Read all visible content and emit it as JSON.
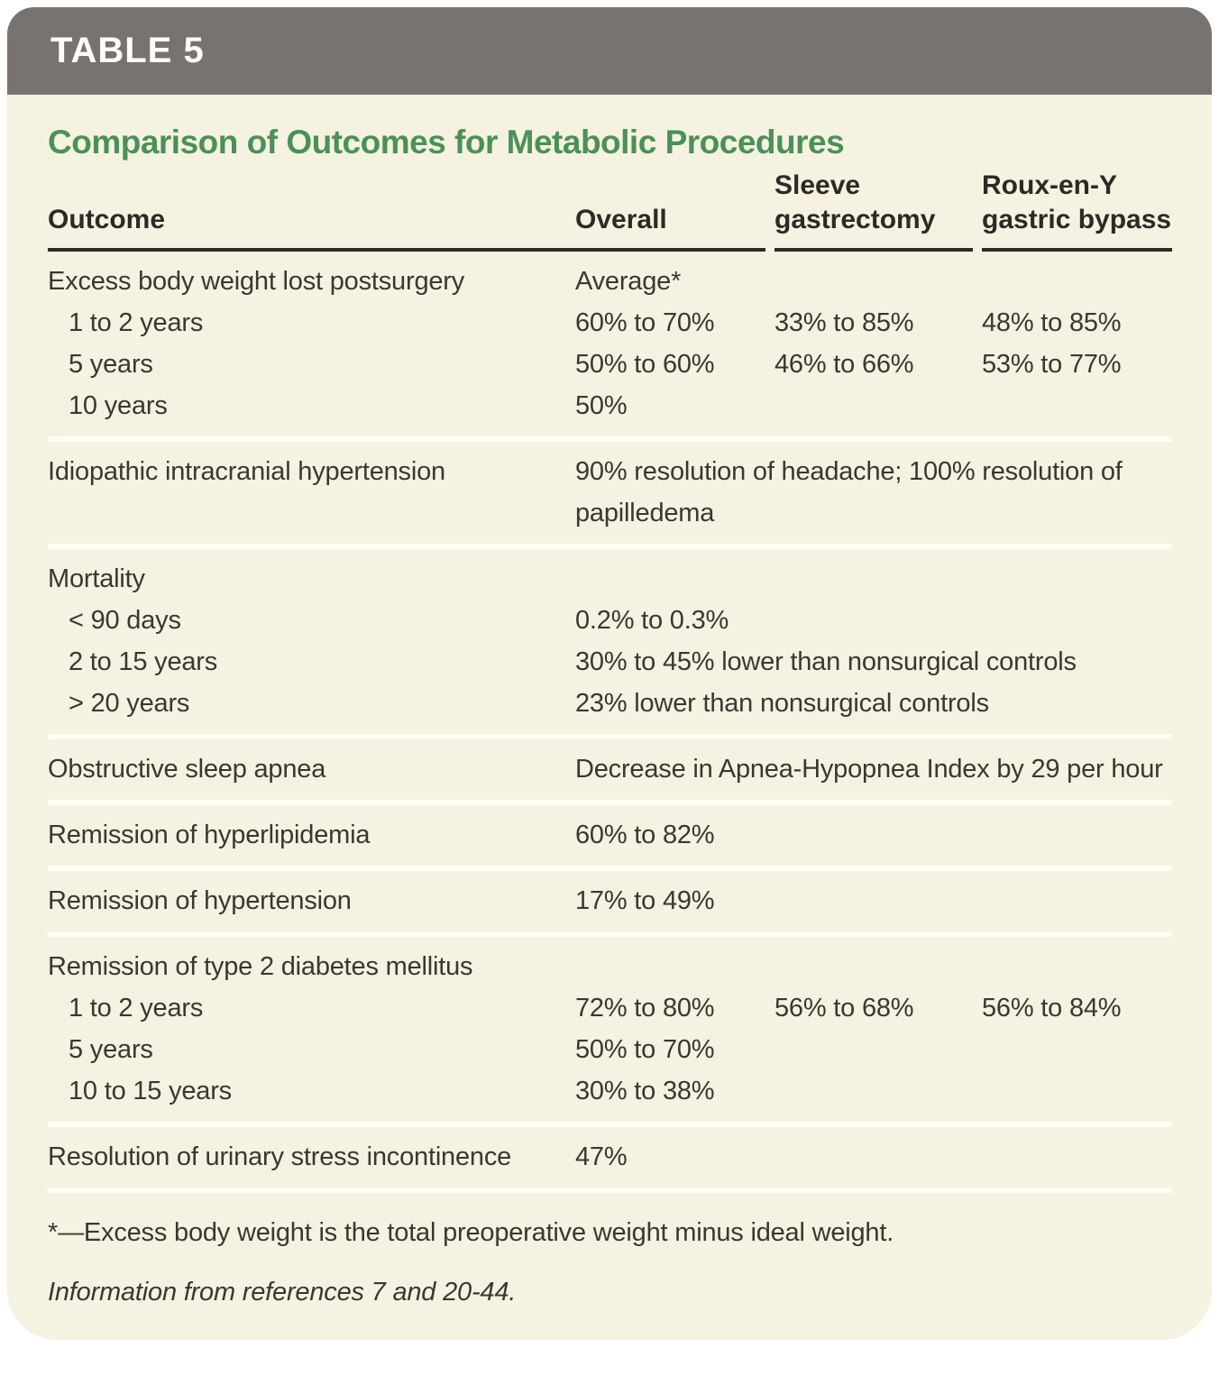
{
  "table": {
    "tag": "TABLE 5",
    "title": "Comparison of Outcomes for Metabolic Procedures",
    "columns": [
      "Outcome",
      "Overall",
      "Sleeve gastrectomy",
      "Roux-en-Y gastric bypass"
    ],
    "groups": [
      {
        "rows": [
          {
            "outcome": "Excess body weight lost postsurgery",
            "indent": false,
            "overall": "Average*",
            "sleeve": "",
            "roux": ""
          },
          {
            "outcome": "1 to 2 years",
            "indent": true,
            "overall": "60% to 70%",
            "sleeve": "33% to 85%",
            "roux": "48% to 85%"
          },
          {
            "outcome": "5 years",
            "indent": true,
            "overall": "50% to 60%",
            "sleeve": "46% to 66%",
            "roux": "53% to 77%"
          },
          {
            "outcome": "10 years",
            "indent": true,
            "overall": "50%",
            "sleeve": "",
            "roux": ""
          }
        ]
      },
      {
        "rows": [
          {
            "outcome": "Idiopathic intracranial hypertension",
            "indent": false,
            "overall": "90% resolution of headache; 100% resolution of papilledema",
            "span": true
          }
        ]
      },
      {
        "rows": [
          {
            "outcome": "Mortality",
            "indent": false,
            "overall": "",
            "sleeve": "",
            "roux": ""
          },
          {
            "outcome": "< 90 days",
            "indent": true,
            "overall": "0.2% to 0.3%",
            "span": true
          },
          {
            "outcome": "2 to 15 years",
            "indent": true,
            "overall": "30% to 45% lower than nonsurgical controls",
            "span": true
          },
          {
            "outcome": "> 20 years",
            "indent": true,
            "overall": "23% lower than nonsurgical controls",
            "span": true
          }
        ]
      },
      {
        "rows": [
          {
            "outcome": "Obstructive sleep apnea",
            "indent": false,
            "overall": "Decrease in Apnea-Hypopnea Index by 29 per hour",
            "span": true
          }
        ]
      },
      {
        "rows": [
          {
            "outcome": "Remission of hyperlipidemia",
            "indent": false,
            "overall": "60% to 82%",
            "sleeve": "",
            "roux": ""
          }
        ]
      },
      {
        "rows": [
          {
            "outcome": "Remission of hypertension",
            "indent": false,
            "overall": "17% to 49%",
            "sleeve": "",
            "roux": ""
          }
        ]
      },
      {
        "rows": [
          {
            "outcome": "Remission of type 2 diabetes mellitus",
            "indent": false,
            "overall": "",
            "sleeve": "",
            "roux": ""
          },
          {
            "outcome": "1 to 2 years",
            "indent": true,
            "overall": "72% to 80%",
            "sleeve": "56% to 68%",
            "roux": "56% to 84%"
          },
          {
            "outcome": "5 years",
            "indent": true,
            "overall": "50% to 70%",
            "sleeve": "",
            "roux": ""
          },
          {
            "outcome": "10 to 15 years",
            "indent": true,
            "overall": "30% to 38%",
            "sleeve": "",
            "roux": ""
          }
        ]
      },
      {
        "rows": [
          {
            "outcome": "Resolution of urinary stress incontinence",
            "indent": false,
            "overall": "47%",
            "sleeve": "",
            "roux": ""
          }
        ]
      }
    ]
  },
  "footnotes": [
    "*—Excess body weight is the total preoperative weight minus ideal weight.",
    "Information from references 7 and 20-44."
  ],
  "colors": {
    "bar_gray": "#797370",
    "cream": "#f5f2e1",
    "green": "#4a9157",
    "text": "#3a3733",
    "head_text": "#2c2a26",
    "rule": "#2e2c27",
    "sep": "#fffdf4",
    "page_bg": "#ffffff"
  }
}
